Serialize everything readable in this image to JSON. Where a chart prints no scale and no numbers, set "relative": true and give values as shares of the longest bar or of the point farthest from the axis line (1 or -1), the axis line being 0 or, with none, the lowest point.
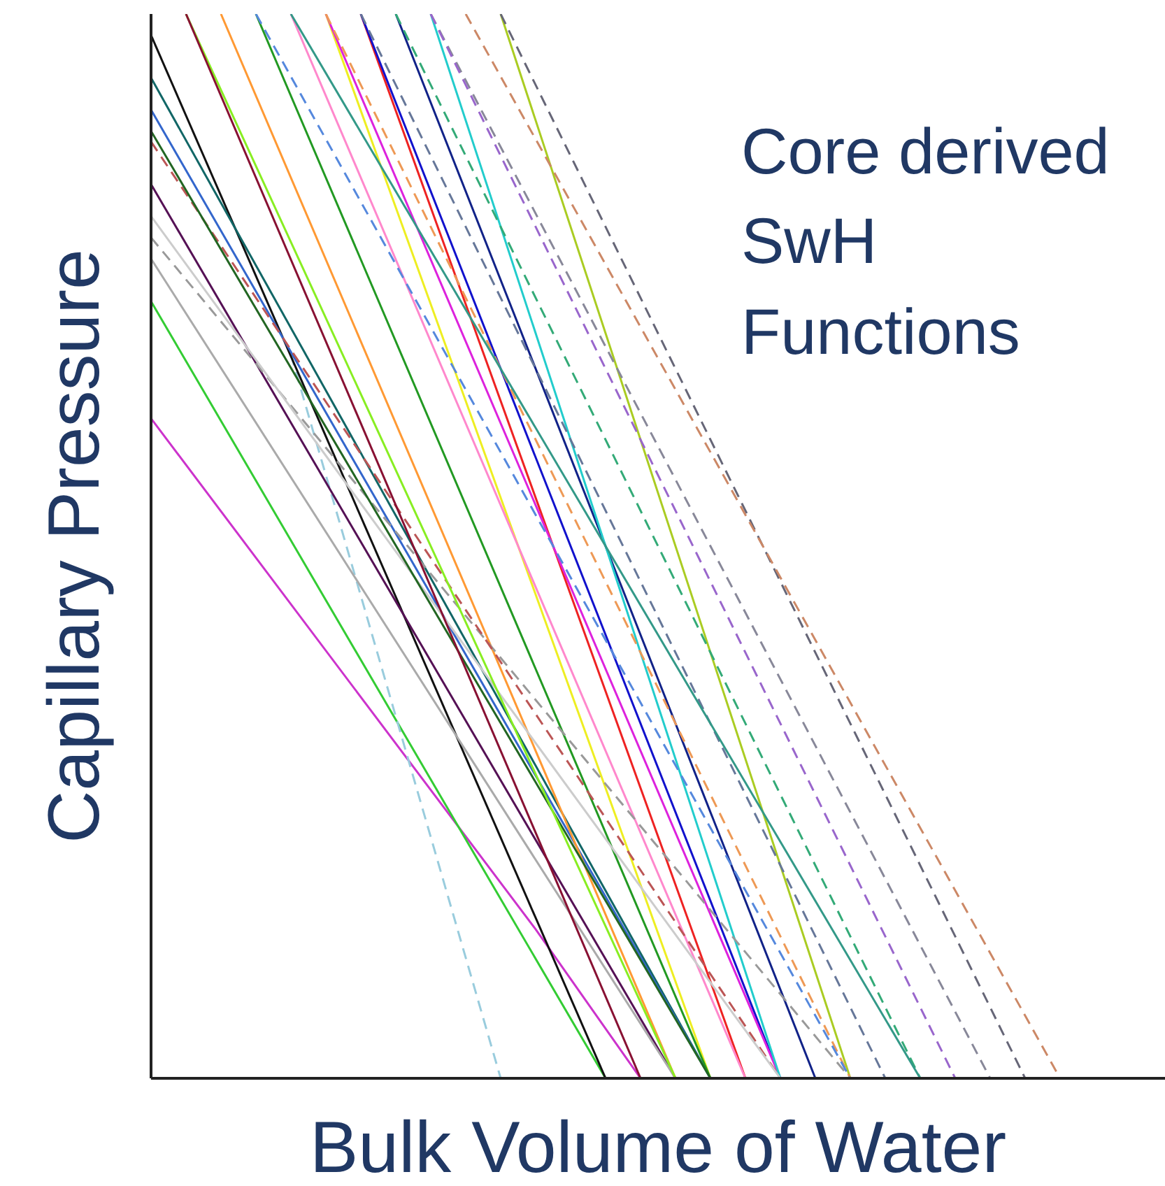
{
  "chart_data": {
    "type": "line",
    "relative": true,
    "xlabel": "Bulk Volume of Water",
    "ylabel": "Capillary Pressure",
    "annotations": [
      "Core derived SwH Functions"
    ],
    "marker": "none",
    "categories": [
      null,
      null,
      null,
      null,
      null,
      null,
      null,
      null,
      null,
      null,
      null,
      null,
      null,
      null,
      null,
      null,
      null,
      null,
      null,
      null,
      null,
      null,
      null,
      null,
      null,
      null,
      null,
      null,
      null,
      null
    ],
    "series": [
      {
        "color": "#cc33cc",
        "line_style": "solid",
        "values": [
          0.62,
          null,
          null,
          null,
          null,
          null,
          null,
          null,
          null,
          null,
          null,
          0.14,
          null,
          null,
          0,
          null,
          null,
          null,
          null,
          null,
          null,
          null,
          null,
          null,
          null,
          null,
          null,
          null,
          null,
          null
        ]
      },
      {
        "color": "#33cc33",
        "line_style": "solid",
        "values": [
          0.73,
          null,
          null,
          null,
          null,
          null,
          null,
          null,
          null,
          null,
          null,
          null,
          null,
          0,
          null,
          null,
          null,
          null,
          null,
          null,
          null,
          null,
          null,
          null,
          null,
          null,
          null,
          null,
          null,
          null
        ]
      },
      {
        "color": "#99ccdd",
        "line_style": "dashed",
        "values": [
          null,
          null,
          null,
          null,
          0.68,
          null,
          null,
          null,
          null,
          null,
          0,
          null,
          null,
          null,
          null,
          null,
          null,
          null,
          null,
          null,
          null,
          null,
          null,
          null,
          null,
          null,
          null,
          null,
          null,
          null
        ]
      },
      {
        "color": "#111111",
        "line_style": "solid",
        "values": [
          0.98,
          null,
          null,
          null,
          null,
          null,
          null,
          null,
          null,
          null,
          null,
          null,
          null,
          0,
          null,
          null,
          null,
          null,
          null,
          null,
          null,
          null,
          null,
          null,
          null,
          null,
          null,
          null,
          null,
          null
        ]
      },
      {
        "color": "#551155",
        "line_style": "solid",
        "values": [
          0.84,
          null,
          null,
          null,
          null,
          null,
          null,
          null,
          null,
          null,
          null,
          null,
          null,
          null,
          null,
          0,
          null,
          null,
          null,
          null,
          null,
          null,
          null,
          null,
          null,
          null,
          null,
          null,
          null,
          null
        ]
      },
      {
        "color": "#aaaaaa",
        "line_style": "solid",
        "values": [
          0.77,
          null,
          null,
          null,
          null,
          null,
          null,
          null,
          null,
          null,
          null,
          null,
          null,
          null,
          null,
          0,
          null,
          null,
          null,
          null,
          null,
          null,
          null,
          null,
          null,
          null,
          null,
          null,
          null,
          null
        ]
      },
      {
        "color": "#116666",
        "line_style": "solid",
        "values": [
          0.94,
          null,
          null,
          null,
          null,
          null,
          null,
          null,
          null,
          null,
          null,
          null,
          null,
          null,
          null,
          null,
          0,
          null,
          null,
          null,
          null,
          null,
          null,
          null,
          null,
          null,
          null,
          null,
          null,
          null
        ]
      },
      {
        "color": "#3366cc",
        "line_style": "solid",
        "values": [
          0.91,
          null,
          null,
          null,
          null,
          null,
          null,
          null,
          null,
          null,
          null,
          null,
          null,
          null,
          null,
          null,
          0,
          null,
          null,
          null,
          null,
          null,
          null,
          null,
          null,
          null,
          null,
          null,
          null,
          null
        ]
      },
      {
        "color": "#ee2222",
        "line_style": "solid",
        "values": [
          null,
          null,
          null,
          null,
          null,
          null,
          1,
          null,
          null,
          null,
          null,
          null,
          null,
          null,
          null,
          null,
          null,
          0,
          null,
          null,
          null,
          null,
          null,
          null,
          null,
          null,
          null,
          null,
          null,
          null
        ]
      },
      {
        "color": "#1111cc",
        "line_style": "solid",
        "values": [
          null,
          null,
          null,
          null,
          null,
          null,
          1,
          null,
          null,
          null,
          null,
          null,
          null,
          null,
          null,
          null,
          null,
          null,
          0,
          null,
          null,
          null,
          null,
          null,
          null,
          null,
          null,
          null,
          null,
          null
        ]
      },
      {
        "color": "#eeee22",
        "line_style": "solid",
        "values": [
          null,
          null,
          null,
          null,
          null,
          1,
          null,
          null,
          null,
          null,
          null,
          null,
          null,
          null,
          null,
          null,
          0,
          null,
          null,
          null,
          null,
          null,
          null,
          null,
          null,
          null,
          null,
          null,
          null,
          null
        ]
      },
      {
        "color": "#ff9933",
        "line_style": "solid",
        "values": [
          null,
          null,
          1,
          null,
          null,
          null,
          null,
          null,
          null,
          null,
          null,
          null,
          null,
          null,
          null,
          0,
          null,
          null,
          null,
          null,
          null,
          null,
          null,
          null,
          null,
          null,
          null,
          null,
          null,
          null
        ]
      },
      {
        "color": "#229922",
        "line_style": "solid",
        "values": [
          null,
          null,
          null,
          1,
          null,
          null,
          null,
          null,
          null,
          null,
          null,
          null,
          null,
          null,
          null,
          null,
          0,
          null,
          null,
          null,
          null,
          null,
          null,
          null,
          null,
          null,
          null,
          null,
          null,
          null
        ]
      },
      {
        "color": "#ff88cc",
        "line_style": "solid",
        "values": [
          null,
          null,
          null,
          null,
          1,
          null,
          null,
          null,
          null,
          null,
          null,
          null,
          null,
          null,
          null,
          null,
          null,
          0,
          null,
          null,
          null,
          null,
          null,
          null,
          null,
          null,
          null,
          null,
          null,
          null
        ]
      },
      {
        "color": "#112288",
        "line_style": "solid",
        "values": [
          null,
          null,
          null,
          null,
          null,
          null,
          null,
          1,
          null,
          null,
          null,
          null,
          null,
          null,
          null,
          null,
          null,
          null,
          null,
          0,
          null,
          null,
          null,
          null,
          null,
          null,
          null,
          null,
          null,
          null
        ]
      },
      {
        "color": "#dd22dd",
        "line_style": "solid",
        "values": [
          null,
          null,
          null,
          null,
          null,
          1,
          null,
          null,
          null,
          null,
          null,
          null,
          null,
          null,
          null,
          null,
          null,
          null,
          0,
          null,
          null,
          null,
          null,
          null,
          null,
          null,
          null,
          null,
          null,
          null
        ]
      },
      {
        "color": "#22cccc",
        "line_style": "solid",
        "values": [
          null,
          null,
          null,
          null,
          null,
          null,
          null,
          null,
          1,
          null,
          null,
          null,
          null,
          null,
          null,
          null,
          null,
          null,
          0,
          null,
          null,
          null,
          null,
          null,
          null,
          null,
          null,
          null,
          null,
          null
        ]
      },
      {
        "color": "#aacc22",
        "line_style": "solid",
        "values": [
          null,
          null,
          null,
          null,
          null,
          null,
          null,
          null,
          null,
          null,
          1,
          null,
          null,
          null,
          null,
          null,
          null,
          null,
          null,
          null,
          0,
          null,
          null,
          null,
          null,
          null,
          null,
          null,
          null,
          null
        ]
      },
      {
        "color": "#666677",
        "line_style": "dashed",
        "values": [
          null,
          null,
          null,
          null,
          null,
          null,
          null,
          null,
          null,
          null,
          1,
          null,
          null,
          null,
          null,
          null,
          null,
          null,
          null,
          null,
          null,
          null,
          null,
          null,
          null,
          0,
          null,
          null,
          null,
          null
        ]
      },
      {
        "color": "#cc8866",
        "line_style": "dashed",
        "values": [
          null,
          null,
          null,
          null,
          null,
          null,
          null,
          null,
          null,
          1,
          null,
          null,
          null,
          null,
          null,
          null,
          null,
          null,
          null,
          null,
          null,
          null,
          null,
          null,
          null,
          null,
          0,
          null,
          null,
          null
        ]
      },
      {
        "color": "#888899",
        "line_style": "dashed",
        "values": [
          null,
          null,
          null,
          null,
          null,
          null,
          null,
          null,
          1,
          null,
          null,
          null,
          null,
          null,
          null,
          null,
          null,
          null,
          null,
          null,
          null,
          null,
          null,
          null,
          0,
          null,
          null,
          null,
          null,
          null
        ]
      },
      {
        "color": "#9966cc",
        "line_style": "dashed",
        "values": [
          null,
          null,
          null,
          null,
          null,
          null,
          null,
          null,
          1,
          null,
          null,
          null,
          null,
          null,
          null,
          null,
          null,
          null,
          null,
          null,
          null,
          null,
          null,
          0,
          null,
          null,
          null,
          null,
          null,
          null
        ]
      },
      {
        "color": "#33aa77",
        "line_style": "dashed",
        "values": [
          null,
          null,
          null,
          null,
          null,
          null,
          null,
          1,
          null,
          null,
          null,
          null,
          null,
          null,
          null,
          null,
          null,
          null,
          null,
          null,
          null,
          null,
          0,
          null,
          null,
          null,
          null,
          null,
          null,
          null
        ]
      },
      {
        "color": "#667799",
        "line_style": "dashed",
        "values": [
          null,
          null,
          null,
          null,
          null,
          null,
          1,
          null,
          null,
          null,
          null,
          null,
          null,
          null,
          null,
          null,
          null,
          null,
          null,
          null,
          null,
          0,
          null,
          null,
          null,
          null,
          null,
          null,
          null,
          null
        ]
      },
      {
        "color": "#ee9955",
        "line_style": "dashed",
        "values": [
          null,
          null,
          null,
          null,
          null,
          1,
          null,
          null,
          null,
          null,
          null,
          null,
          null,
          null,
          null,
          null,
          null,
          null,
          null,
          null,
          0,
          null,
          null,
          null,
          null,
          null,
          null,
          null,
          null,
          null
        ]
      },
      {
        "color": "#339988",
        "line_style": "solid",
        "values": [
          null,
          null,
          null,
          null,
          1,
          null,
          null,
          null,
          null,
          null,
          null,
          null,
          null,
          null,
          null,
          null,
          null,
          null,
          null,
          null,
          null,
          null,
          0,
          null,
          null,
          null,
          null,
          null,
          null,
          null
        ]
      },
      {
        "color": "#999999",
        "line_style": "dashed",
        "values": [
          0.79,
          null,
          null,
          null,
          null,
          null,
          null,
          null,
          null,
          null,
          null,
          null,
          null,
          null,
          null,
          null,
          null,
          null,
          null,
          null,
          0,
          null,
          null,
          null,
          null,
          null,
          null,
          null,
          null,
          null
        ]
      },
      {
        "color": "#bb5555",
        "line_style": "dashed",
        "values": [
          0.88,
          null,
          null,
          null,
          null,
          null,
          null,
          null,
          null,
          null,
          null,
          null,
          null,
          null,
          null,
          null,
          null,
          null,
          0,
          null,
          null,
          null,
          null,
          null,
          null,
          null,
          null,
          null,
          null,
          null
        ]
      },
      {
        "color": "#cccccc",
        "line_style": "solid",
        "values": [
          0.81,
          null,
          null,
          null,
          null,
          null,
          null,
          null,
          null,
          null,
          null,
          null,
          null,
          null,
          null,
          null,
          null,
          null,
          0,
          null,
          null,
          null,
          null,
          null,
          null,
          null,
          null,
          null,
          null,
          null
        ]
      },
      {
        "color": "#226622",
        "line_style": "solid",
        "values": [
          0.89,
          null,
          null,
          null,
          null,
          null,
          null,
          null,
          null,
          null,
          null,
          null,
          null,
          null,
          null,
          null,
          0,
          null,
          null,
          null,
          null,
          null,
          null,
          null,
          null,
          null,
          null,
          null,
          null,
          null
        ]
      },
      {
        "color": "#88ee22",
        "line_style": "solid",
        "values": [
          null,
          1,
          null,
          null,
          null,
          null,
          null,
          null,
          null,
          null,
          null,
          null,
          null,
          null,
          null,
          0,
          null,
          null,
          null,
          null,
          null,
          null,
          null,
          null,
          null,
          null,
          null,
          null,
          null,
          null
        ]
      },
      {
        "color": "#5588dd",
        "line_style": "dashed",
        "values": [
          null,
          null,
          null,
          1,
          null,
          null,
          null,
          null,
          null,
          null,
          null,
          null,
          null,
          null,
          null,
          null,
          null,
          null,
          null,
          null,
          0,
          null,
          null,
          null,
          null,
          null,
          null,
          null,
          null,
          null
        ]
      },
      {
        "color": "#881133",
        "line_style": "solid",
        "values": [
          null,
          1,
          null,
          null,
          null,
          null,
          null,
          null,
          null,
          null,
          null,
          null,
          null,
          null,
          0,
          null,
          null,
          null,
          null,
          null,
          null,
          null,
          null,
          null,
          null,
          null,
          null,
          null,
          null,
          null
        ]
      }
    ]
  }
}
